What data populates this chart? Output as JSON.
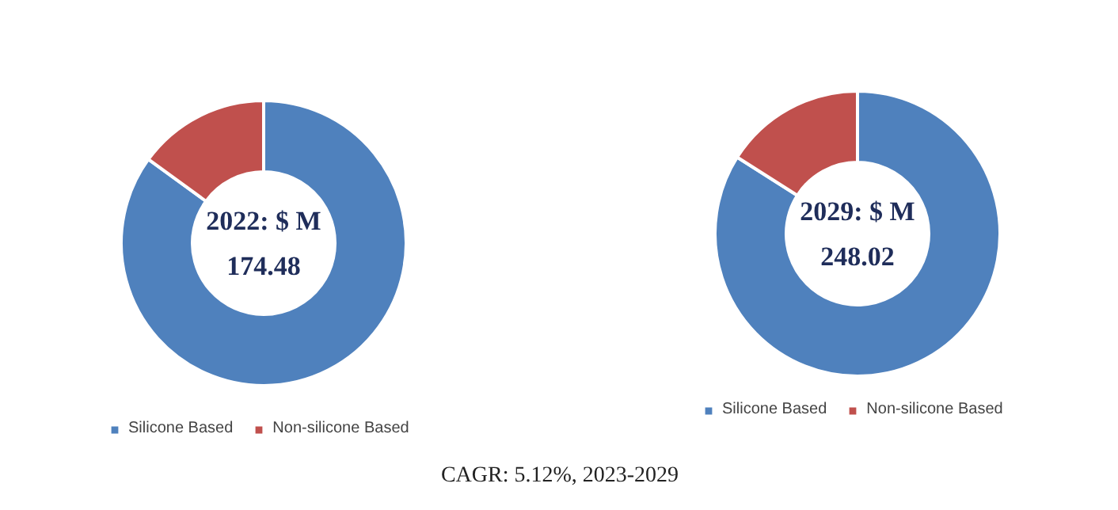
{
  "chart_data": [
    {
      "type": "donut",
      "title": "2022: $ M",
      "annotations": [
        "174.48",
        "CAGR: 5.12%, 2023-2029"
      ],
      "categories": [
        "Silicone Based",
        "Non-silicone Based"
      ],
      "values": [
        85,
        15
      ],
      "colors": [
        "#4f81bd",
        "#c0504d"
      ],
      "legend": "bottom"
    },
    {
      "type": "donut",
      "title": "2029: $ M",
      "annotations": [
        "248.02"
      ],
      "categories": [
        "Silicone Based",
        "Non-silicone Based"
      ],
      "values": [
        84,
        16
      ],
      "colors": [
        "#4f81bd",
        "#c0504d"
      ],
      "legend": "bottom"
    }
  ]
}
